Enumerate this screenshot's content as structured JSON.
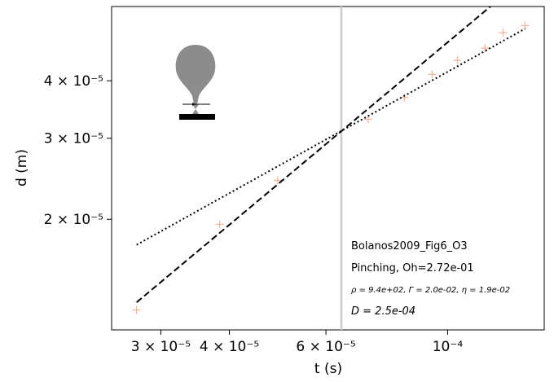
{
  "chart_data": {
    "type": "scatter",
    "x_label": "t (s)",
    "y_label": "d (m)",
    "log_x": true,
    "log_y": true,
    "xlim": [
      2.44e-05,
      0.00015
    ],
    "ylim": [
      1.15e-05,
      5.8e-05
    ],
    "xticks": [
      {
        "value": 3e-05,
        "label": "3 × 10⁻⁵"
      },
      {
        "value": 4e-05,
        "label": "4 × 10⁻⁵"
      },
      {
        "value": 6e-05,
        "label": "6 × 10⁻⁵"
      },
      {
        "value": 0.0001,
        "label": "10⁻⁴"
      }
    ],
    "yticks": [
      {
        "value": 2e-05,
        "label": "2 × 10⁻⁵"
      },
      {
        "value": 3e-05,
        "label": "3 × 10⁻⁵"
      },
      {
        "value": 4e-05,
        "label": "4 × 10⁻⁵"
      }
    ],
    "series": [
      {
        "kind": "points",
        "color": "#f0b8a0",
        "x": [
          2.71e-05,
          3.84e-05,
          4.9e-05,
          7.16e-05,
          8.34e-05,
          9.37e-05,
          0.0001042,
          0.000117,
          0.0001262,
          0.0001384
        ],
        "values": [
          1.27e-05,
          1.95e-05,
          2.43e-05,
          3.3e-05,
          3.68e-05,
          4.13e-05,
          4.43e-05,
          4.71e-05,
          5.09e-05,
          5.27e-05
        ]
      },
      {
        "kind": "line",
        "dash": "dashed",
        "color": "#000000",
        "x": [
          2.71e-05,
          0.0001197
        ],
        "values": [
          1.32e-05,
          5.8e-05
        ]
      },
      {
        "kind": "line",
        "dash": "dotted",
        "color": "#000000",
        "x": [
          2.71e-05,
          0.0001384
        ],
        "values": [
          1.76e-05,
          5.19e-05
        ]
      }
    ],
    "vline": {
      "x": 6.4e-05,
      "color": "#cccccc"
    },
    "annotations": [
      "Bolanos2009_Fig6_O3",
      "Pinching, Oh=2.72e-01",
      "ρ = 9.4e+02, Γ = 2.0e-02, η = 1.9e-02",
      "D = 2.5e-04"
    ]
  }
}
